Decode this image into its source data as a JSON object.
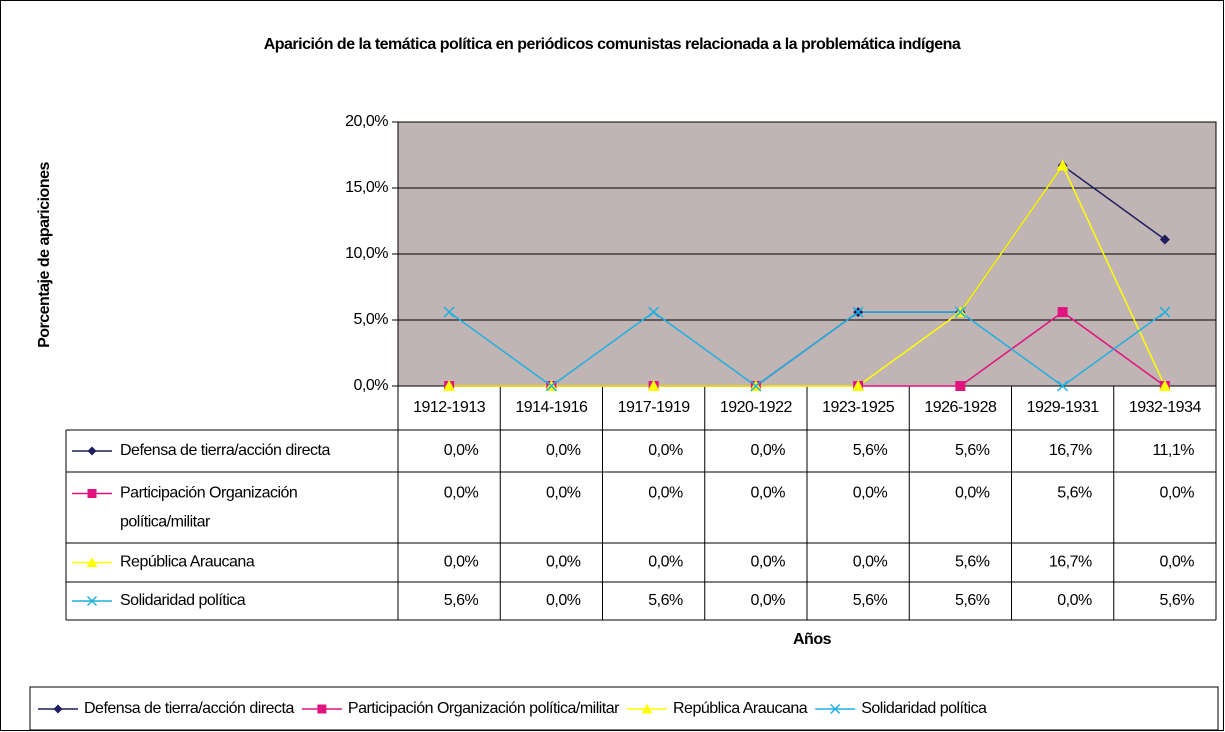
{
  "chart_data": {
    "type": "line",
    "title": "Aparición de la temática política en periódicos comunistas relacionada a la problemática indígena",
    "y_label": "Porcentaje de apariciones",
    "x_label": "Años",
    "categories": [
      "1912-1913",
      "1914-1916",
      "1917-1919",
      "1920-1922",
      "1923-1925",
      "1926-1928",
      "1929-1931",
      "1932-1934"
    ],
    "ylim": [
      0,
      20
    ],
    "yticks": [
      {
        "value": 0,
        "label": "0,0%"
      },
      {
        "value": 5,
        "label": "5,0%"
      },
      {
        "value": 10,
        "label": "10,0%"
      },
      {
        "value": 15,
        "label": "15,0%"
      },
      {
        "value": 20,
        "label": "20,0%"
      }
    ],
    "grid": true,
    "legend": "bottom",
    "data_table": true,
    "series": [
      {
        "name": "Defensa de tierra/acción directa",
        "color": "#1f1f5f",
        "marker": "diamond",
        "values": [
          0,
          0,
          0,
          0,
          5.6,
          5.6,
          16.7,
          11.1
        ],
        "value_labels": [
          "0,0%",
          "0,0%",
          "0,0%",
          "0,0%",
          "5,6%",
          "5,6%",
          "16,7%",
          "11,1%"
        ]
      },
      {
        "name": "Participación Organización política/militar",
        "color": "#e0147f",
        "marker": "square",
        "values": [
          0,
          0,
          0,
          0,
          0,
          0,
          5.6,
          0
        ],
        "value_labels": [
          "0,0%",
          "0,0%",
          "0,0%",
          "0,0%",
          "0,0%",
          "0,0%",
          "5,6%",
          "0,0%"
        ]
      },
      {
        "name": "República Araucana",
        "color": "#ffff00",
        "marker": "triangle",
        "values": [
          0,
          0,
          0,
          0,
          0,
          5.6,
          16.7,
          0
        ],
        "value_labels": [
          "0,0%",
          "0,0%",
          "0,0%",
          "0,0%",
          "0,0%",
          "5,6%",
          "16,7%",
          "0,0%"
        ]
      },
      {
        "name": "Solidaridad política",
        "color": "#1fb0e0",
        "marker": "x",
        "values": [
          5.6,
          0,
          5.6,
          0,
          5.6,
          5.6,
          0,
          5.6
        ],
        "value_labels": [
          "5,6%",
          "0,0%",
          "5,6%",
          "0,0%",
          "5,6%",
          "5,6%",
          "0,0%",
          "5,6%"
        ]
      }
    ]
  }
}
